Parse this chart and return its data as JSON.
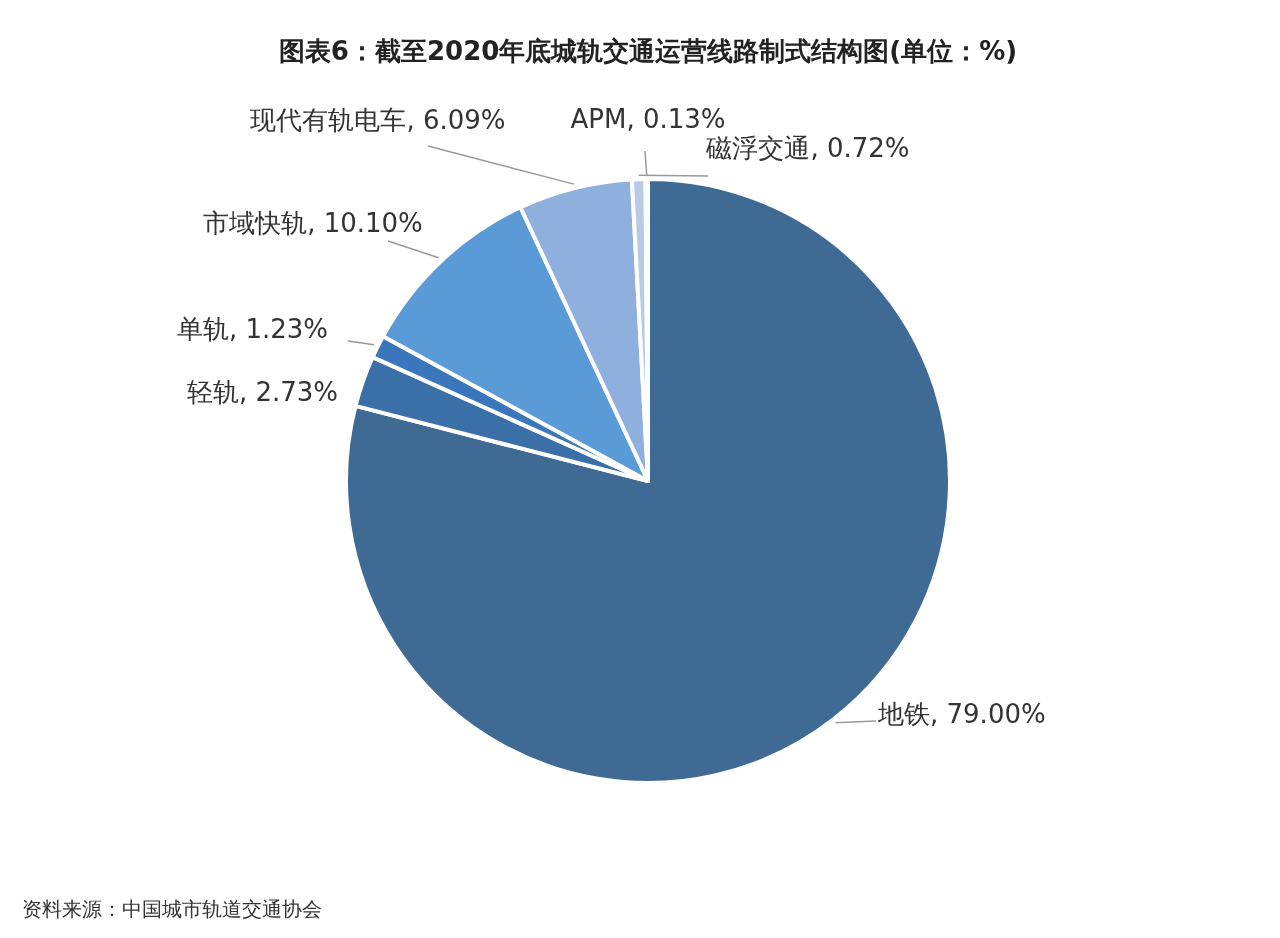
{
  "chart_data": {
    "type": "pie",
    "title": "图表6：截至2020年底城轨交通运营线路制式结构图(单位：%)",
    "categories": [
      "地铁",
      "轻轨",
      "单轨",
      "市域快轨",
      "现代有轨电车",
      "磁浮交通",
      "APM"
    ],
    "values": [
      79.0,
      2.73,
      1.23,
      10.1,
      6.09,
      0.72,
      0.13
    ],
    "value_labels": [
      "79.00%",
      "2.73%",
      "1.23%",
      "10.10%",
      "6.09%",
      "0.72%",
      "0.13%"
    ],
    "colors": [
      "#3f6a94",
      "#3b6fa8",
      "#3a76bb",
      "#5a9ad6",
      "#8fb0de",
      "#b7cbe9",
      "#d0def2"
    ],
    "annotations": [
      "资料来源：中国城市轨道交通协会"
    ]
  }
}
